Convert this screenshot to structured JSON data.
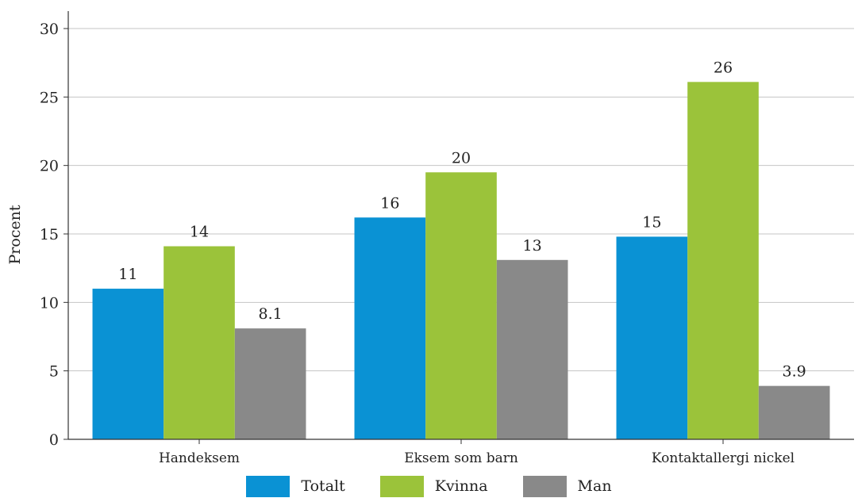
{
  "chart_data": {
    "type": "bar",
    "categories": [
      "Handeksem",
      "Eksem som barn",
      "Kontaktallergi nickel"
    ],
    "series": [
      {
        "name": "Totalt",
        "values": [
          11.0,
          16.2,
          14.8
        ],
        "labels": [
          "11",
          "16",
          "15"
        ],
        "color": "#0a92d4"
      },
      {
        "name": "Kvinna",
        "values": [
          14.1,
          19.5,
          26.1
        ],
        "labels": [
          "14",
          "20",
          "26"
        ],
        "color": "#9bc33a"
      },
      {
        "name": "Man",
        "values": [
          8.1,
          13.1,
          3.9
        ],
        "labels": [
          "8.1",
          "13",
          "3.9"
        ],
        "color": "#898989"
      }
    ],
    "ylabel": "Procent",
    "ylim": [
      0,
      30
    ],
    "yticks": [
      "0",
      "5",
      "10",
      "15",
      "20",
      "25",
      "30"
    ],
    "grid": true,
    "legend_position": "bottom"
  }
}
